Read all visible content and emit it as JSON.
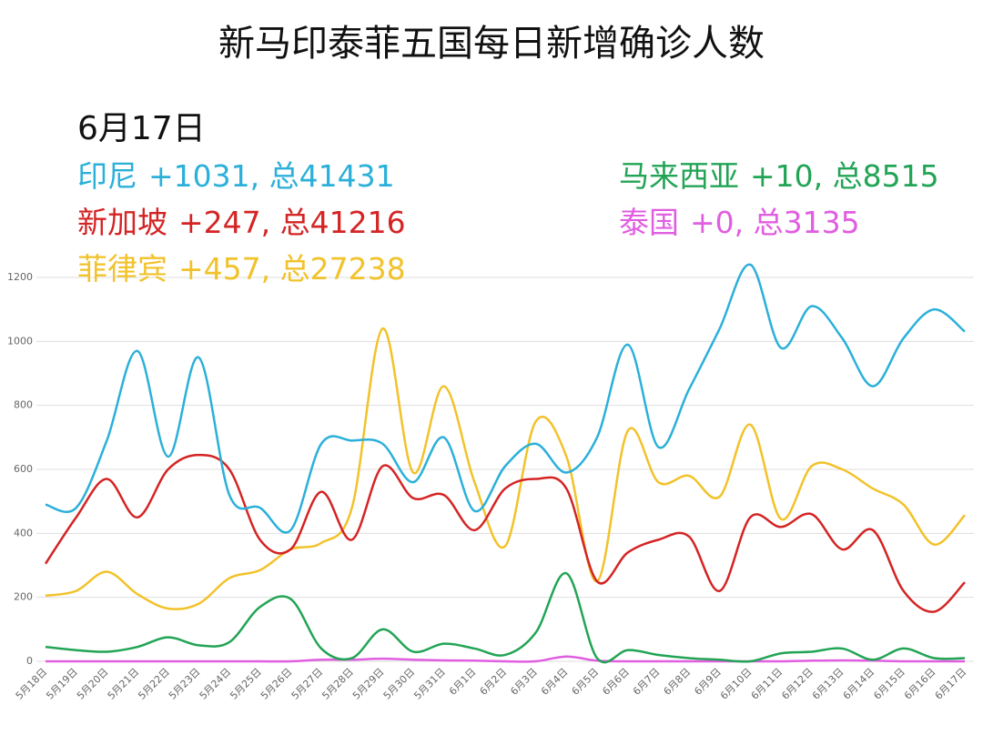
{
  "chart_data": {
    "type": "line",
    "title": "新马印泰菲五国每日新增确诊人数",
    "date": "6月17日",
    "categories": [
      "5月18日",
      "5月19日",
      "5月20日",
      "5月21日",
      "5月22日",
      "5月23日",
      "5月24日",
      "5月25日",
      "5月26日",
      "5月27日",
      "5月28日",
      "5月29日",
      "5月30日",
      "5月31日",
      "6月1日",
      "6月2日",
      "6月3日",
      "6月4日",
      "6月5日",
      "6月6日",
      "6月7日",
      "6月8日",
      "6月9日",
      "6月10日",
      "6月11日",
      "6月12日",
      "6月13日",
      "6月14日",
      "6月15日",
      "6月16日",
      "6月17日"
    ],
    "series": [
      {
        "name": "印尼",
        "summary": "+1031, 总41431",
        "color": "#2bb0d9",
        "values": [
          490,
          480,
          690,
          970,
          640,
          950,
          520,
          480,
          410,
          680,
          690,
          680,
          560,
          700,
          470,
          610,
          680,
          590,
          700,
          990,
          670,
          850,
          1040,
          1240,
          980,
          1110,
          1010,
          860,
          1010,
          1100,
          1031
        ]
      },
      {
        "name": "新加坡",
        "summary": "+247, 总41216",
        "color": "#d42424",
        "values": [
          305,
          450,
          570,
          450,
          600,
          645,
          600,
          380,
          350,
          530,
          380,
          610,
          510,
          520,
          410,
          540,
          570,
          540,
          250,
          340,
          380,
          390,
          220,
          450,
          420,
          460,
          350,
          410,
          220,
          155,
          247
        ]
      },
      {
        "name": "菲律宾",
        "summary": "+457, 总27238",
        "color": "#f2c22a",
        "values": [
          205,
          220,
          280,
          210,
          165,
          180,
          260,
          285,
          350,
          370,
          480,
          1040,
          590,
          860,
          560,
          360,
          750,
          640,
          250,
          720,
          560,
          580,
          515,
          740,
          445,
          610,
          600,
          540,
          490,
          365,
          457
        ]
      },
      {
        "name": "马来西亚",
        "summary": "+10, 总8515",
        "color": "#22a455",
        "values": [
          45,
          35,
          30,
          45,
          75,
          50,
          60,
          170,
          195,
          40,
          10,
          100,
          30,
          55,
          40,
          20,
          90,
          275,
          10,
          35,
          20,
          10,
          5,
          0,
          25,
          30,
          40,
          5,
          40,
          10,
          10
        ]
      },
      {
        "name": "泰国",
        "summary": "+0, 总3135",
        "color": "#e05ee0",
        "values": [
          0,
          0,
          0,
          0,
          0,
          0,
          0,
          0,
          0,
          5,
          5,
          8,
          5,
          3,
          2,
          0,
          0,
          15,
          2,
          0,
          0,
          0,
          0,
          0,
          0,
          2,
          3,
          2,
          0,
          0,
          0
        ]
      }
    ],
    "ylim": [
      0,
      1200
    ],
    "yticks": [
      0,
      200,
      400,
      600,
      800,
      1000,
      1200
    ],
    "grid": true
  }
}
